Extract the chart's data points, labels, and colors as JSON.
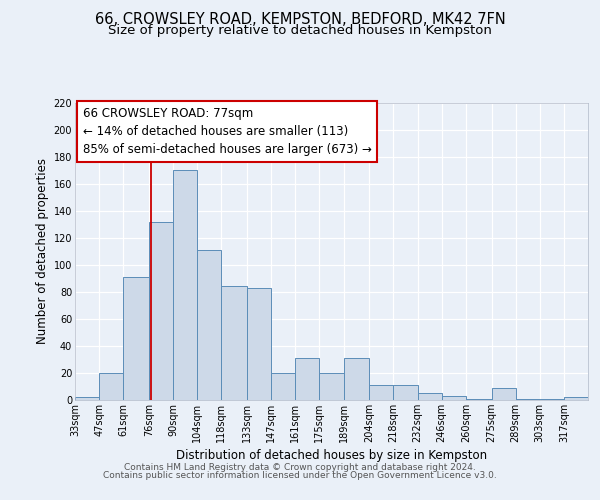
{
  "title_line1": "66, CROWSLEY ROAD, KEMPSTON, BEDFORD, MK42 7FN",
  "title_line2": "Size of property relative to detached houses in Kempston",
  "xlabel": "Distribution of detached houses by size in Kempston",
  "ylabel": "Number of detached properties",
  "bin_labels": [
    "33sqm",
    "47sqm",
    "61sqm",
    "76sqm",
    "90sqm",
    "104sqm",
    "118sqm",
    "133sqm",
    "147sqm",
    "161sqm",
    "175sqm",
    "189sqm",
    "204sqm",
    "218sqm",
    "232sqm",
    "246sqm",
    "260sqm",
    "275sqm",
    "289sqm",
    "303sqm",
    "317sqm"
  ],
  "bin_edges": [
    33,
    47,
    61,
    76,
    90,
    104,
    118,
    133,
    147,
    161,
    175,
    189,
    204,
    218,
    232,
    246,
    260,
    275,
    289,
    303,
    317,
    331
  ],
  "bar_values": [
    2,
    20,
    91,
    132,
    170,
    111,
    84,
    83,
    20,
    31,
    20,
    31,
    11,
    11,
    5,
    3,
    1,
    9,
    1,
    1,
    2
  ],
  "bar_face_color": "#cdd9e8",
  "bar_edge_color": "#5b8db8",
  "vline_x": 77,
  "vline_color": "#cc0000",
  "annotation_line1": "66 CROWSLEY ROAD: 77sqm",
  "annotation_line2": "← 14% of detached houses are smaller (113)",
  "annotation_line3": "85% of semi-detached houses are larger (673) →",
  "ylim": [
    0,
    220
  ],
  "yticks": [
    0,
    20,
    40,
    60,
    80,
    100,
    120,
    140,
    160,
    180,
    200,
    220
  ],
  "background_color": "#eaf0f8",
  "plot_bg_color": "#eaf0f8",
  "grid_color": "#ffffff",
  "footer_line1": "Contains HM Land Registry data © Crown copyright and database right 2024.",
  "footer_line2": "Contains public sector information licensed under the Open Government Licence v3.0.",
  "title_fontsize": 10.5,
  "subtitle_fontsize": 9.5,
  "axis_label_fontsize": 8.5,
  "tick_fontsize": 7,
  "annotation_fontsize": 8.5,
  "footer_fontsize": 6.5
}
